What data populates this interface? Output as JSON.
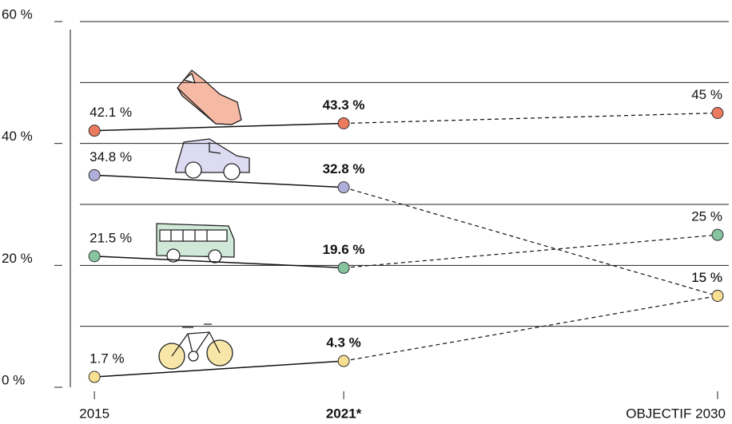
{
  "chart_data": {
    "type": "line",
    "x": [
      2015,
      2021,
      2030
    ],
    "xlim": [
      2014.42,
      2030.27
    ],
    "xticks": [
      2015,
      {
        "value": 2021,
        "label": "2021*"
      },
      {
        "value": 2030,
        "label": "OBJECTIF 2030"
      }
    ],
    "ylim": [
      0,
      60
    ],
    "yticks": [
      {
        "value": 0,
        "label": "0 %"
      },
      {
        "value": 20,
        "label": "20 %"
      },
      {
        "value": 40,
        "label": "40 %"
      },
      {
        "value": 60,
        "label": "60 %"
      }
    ],
    "grid_lines": [
      10,
      20,
      30,
      40,
      50,
      60
    ],
    "series": [
      {
        "color": "#ec7a5f",
        "values": [
          42.1,
          43.3,
          45
        ],
        "value_labels": [
          "42.1 %",
          "43.3 %",
          "45 %"
        ]
      },
      {
        "color": "#b0afdc",
        "values": [
          34.8,
          32.8,
          15
        ],
        "value_labels": [
          "34.8 %",
          "32.8 %",
          "15 %"
        ]
      },
      {
        "color": "#86c5a0",
        "values": [
          21.5,
          19.6,
          25
        ],
        "value_labels": [
          "21.5 %",
          "19.6 %",
          "25 %"
        ]
      },
      {
        "color": "#f8df92",
        "values": [
          1.7,
          4.3,
          15
        ],
        "value_labels": [
          "1.7 %",
          "4.3 %",
          "15 %"
        ]
      }
    ]
  }
}
